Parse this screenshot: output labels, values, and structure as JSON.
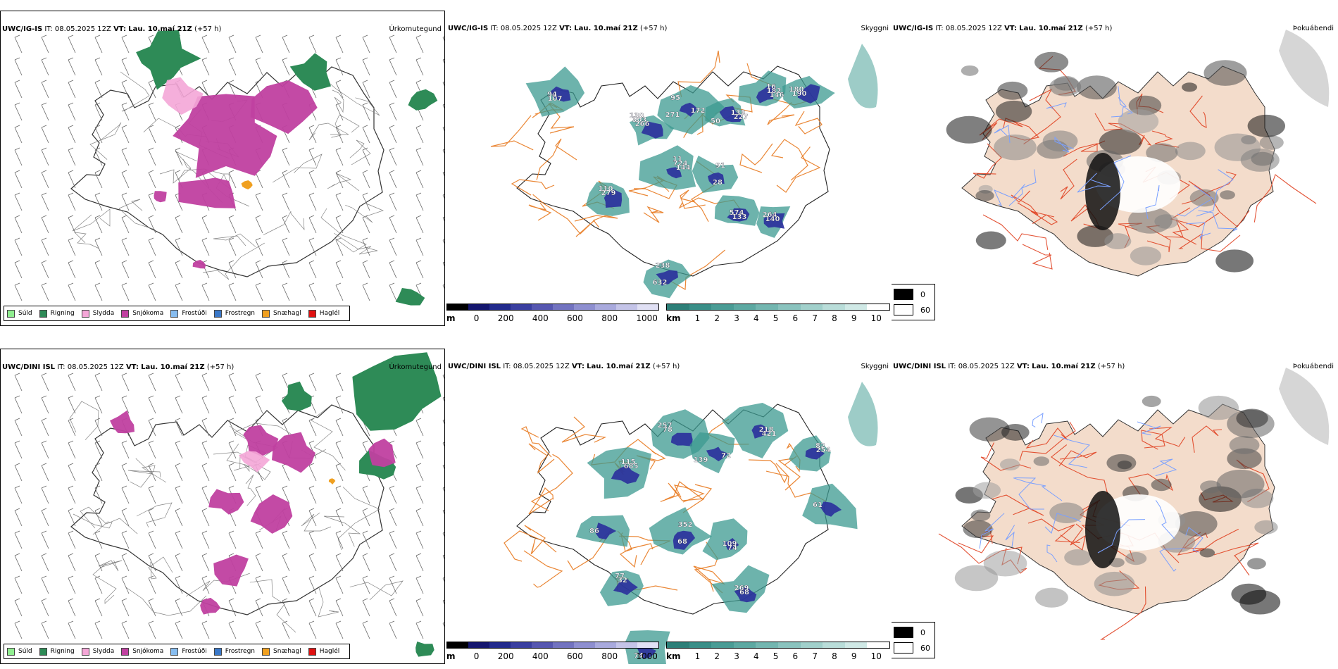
{
  "panels": [
    {
      "header": {
        "model": "UWC/IG-IS",
        "it_label": "IT:",
        "it": "08.05.2025 12Z",
        "vt_label": "VT:",
        "vt": "Lau. 10.maí 21Z",
        "lead": "(+57 h)"
      },
      "title": "Úrkomutegund"
    },
    {
      "header": {
        "model": "UWC/IG-IS",
        "it_label": "IT:",
        "it": "08.05.2025 12Z",
        "vt_label": "VT:",
        "vt": "Lau. 10.maí 21Z",
        "lead": "(+57 h)"
      },
      "title": "Skyggni",
      "labels": [
        "130",
        "172",
        "133",
        "16",
        "11",
        "28",
        "574",
        "264",
        "110",
        "632",
        "94",
        "180",
        "303",
        "271",
        "227",
        "182",
        "724",
        "91",
        "133",
        "140",
        "279",
        "238",
        "107",
        "190",
        "266",
        "95",
        "50",
        "146",
        "144"
      ]
    },
    {
      "header": {
        "model": "UWC/IG-IS",
        "it_label": "IT:",
        "it": "08.05.2025 12Z",
        "vt_label": "VT:",
        "vt": "Lau. 10.maí 21Z",
        "lead": "(+57 h)"
      },
      "title": "Þokuábendi"
    },
    {
      "header": {
        "model": "UWC/DINI ISL",
        "it_label": "IT:",
        "it": "08.05.2025 12Z",
        "vt_label": "VT:",
        "vt": "Lau. 10.maí 21Z",
        "lead": "(+57 h)"
      },
      "title": "Úrkomutegund"
    },
    {
      "header": {
        "model": "UWC/DINI ISL",
        "it_label": "IT:",
        "it": "08.05.2025 12Z",
        "vt_label": "VT:",
        "vt": "Lau. 10.maí 21Z",
        "lead": "(+57 h)"
      },
      "title": "Skyggni",
      "labels": [
        "257",
        "72",
        "218",
        "82",
        "115",
        "68",
        "109",
        "269",
        "77",
        "74",
        "86",
        "61",
        "78",
        "139",
        "421",
        "254",
        "685",
        "352",
        "74",
        "68",
        "32"
      ]
    },
    {
      "header": {
        "model": "UWC/DINI ISL",
        "it_label": "IT:",
        "it": "08.05.2025 12Z",
        "vt_label": "VT:",
        "vt": "Lau. 10.maí 21Z",
        "lead": "(+57 h)"
      },
      "title": "Þokuábendi"
    }
  ],
  "precip_legend": [
    {
      "label": "Súld",
      "color": "#90ee90"
    },
    {
      "label": "Rigning",
      "color": "#2e8b57"
    },
    {
      "label": "Slydda",
      "color": "#f4a6d7"
    },
    {
      "label": "Snjókoma",
      "color": "#c040a0"
    },
    {
      "label": "Frostúði",
      "color": "#87bdf0"
    },
    {
      "label": "Frostregn",
      "color": "#3a78c8"
    },
    {
      "label": "Snæhagl",
      "color": "#f0a020"
    },
    {
      "label": "Haglél",
      "color": "#e01010"
    }
  ],
  "colors": {
    "rain": "#2e8b57",
    "snow": "#c040a0",
    "sleet": "#f4a6d7",
    "hail": "#f0a020",
    "teal": "#3c9a90",
    "blue": "#2a2f9c",
    "road": "#e87a20",
    "fogbg": "#f3dccb"
  },
  "height_scale": {
    "unit": "m",
    "ticks": [
      "0",
      "200",
      "400",
      "600",
      "800",
      "1000"
    ]
  },
  "visibility_scale": {
    "unit": "km",
    "ticks": [
      "1",
      "2",
      "3",
      "4",
      "5",
      "6",
      "7",
      "8",
      "9",
      "10"
    ]
  },
  "fog_legend": {
    "values": [
      "0",
      "60"
    ]
  }
}
